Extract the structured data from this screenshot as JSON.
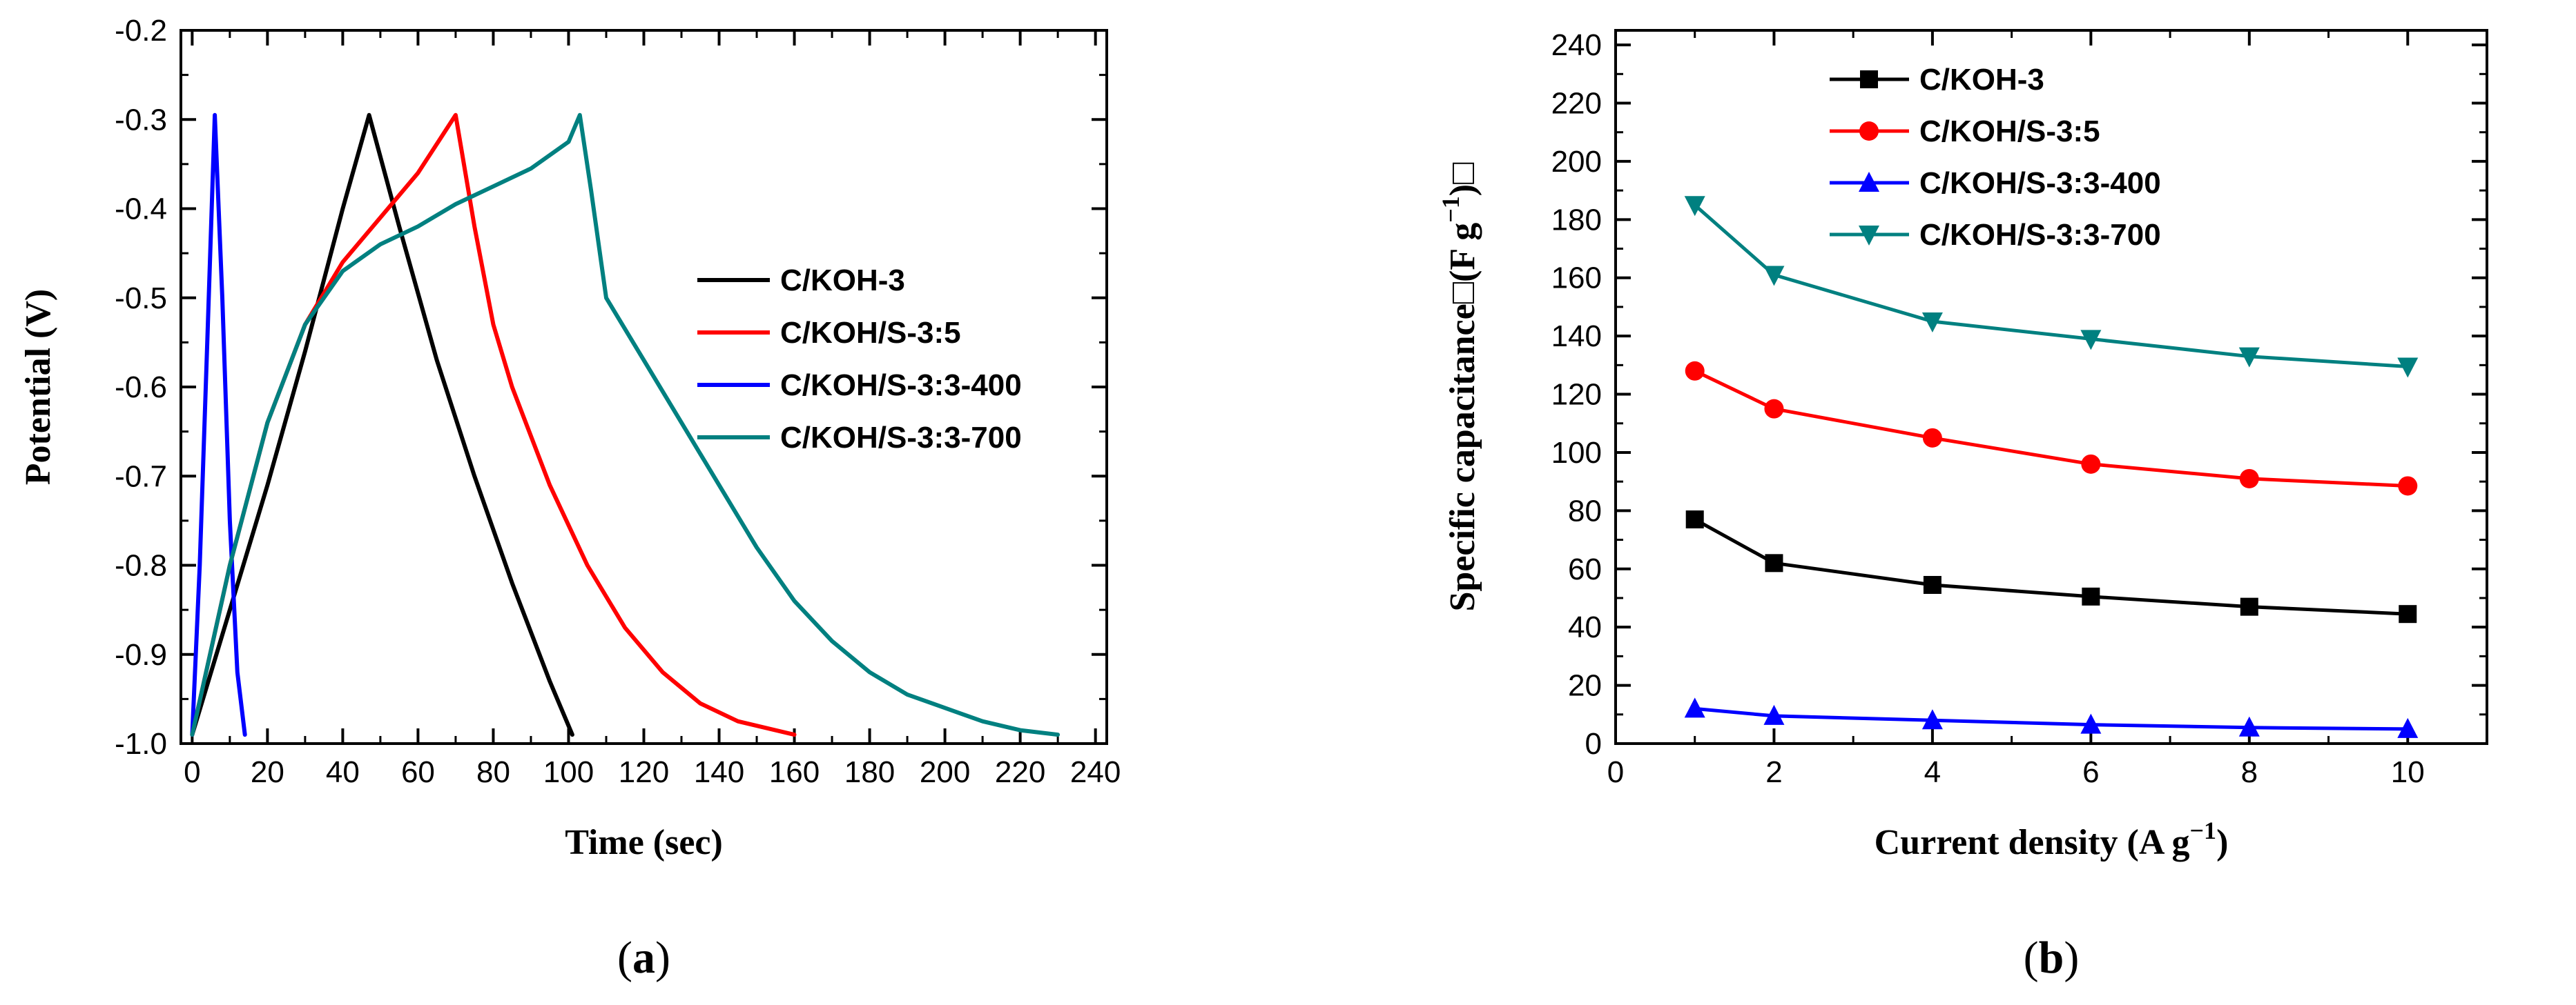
{
  "chart_data": [
    {
      "id": "a",
      "panel_label": {
        "open": "(",
        "letter": "a",
        "close": ")"
      },
      "type": "line",
      "title": "",
      "xlabel": "Time (sec)",
      "ylabel": "Potential (V)",
      "xlim": [
        -3,
        243
      ],
      "ylim": [
        -1.0,
        -0.2
      ],
      "xticks": [
        0,
        20,
        40,
        60,
        80,
        100,
        120,
        140,
        160,
        180,
        200,
        220,
        240
      ],
      "yticks": [
        -1.0,
        -0.9,
        -0.8,
        -0.7,
        -0.6,
        -0.5,
        -0.4,
        -0.3,
        -0.2
      ],
      "ytick_labels": [
        "-1.0",
        "-0.9",
        "-0.8",
        "-0.7",
        "-0.6",
        "-0.5",
        "-0.4",
        "-0.3",
        "-0.2"
      ],
      "legend_position": "center-right",
      "series": [
        {
          "name": "C/KOH-3",
          "color": "#000000",
          "x": [
            0,
            10,
            20,
            30,
            40,
            47,
            55,
            65,
            75,
            85,
            95,
            101
          ],
          "y": [
            -0.99,
            -0.85,
            -0.71,
            -0.56,
            -0.4,
            -0.295,
            -0.42,
            -0.57,
            -0.7,
            -0.82,
            -0.93,
            -0.99
          ]
        },
        {
          "name": "C/KOH/S-3:5",
          "color": "#ff0000",
          "x": [
            0,
            10,
            20,
            30,
            40,
            50,
            60,
            70,
            75,
            80,
            85,
            95,
            105,
            115,
            125,
            135,
            145,
            160
          ],
          "y": [
            -0.99,
            -0.8,
            -0.64,
            -0.53,
            -0.46,
            -0.41,
            -0.36,
            -0.295,
            -0.42,
            -0.53,
            -0.6,
            -0.71,
            -0.8,
            -0.87,
            -0.92,
            -0.955,
            -0.975,
            -0.99
          ]
        },
        {
          "name": "C/KOH/S-3:3-400",
          "color": "#0000ff",
          "x": [
            0,
            2,
            4,
            6,
            8,
            10,
            12,
            14
          ],
          "y": [
            -0.99,
            -0.8,
            -0.55,
            -0.295,
            -0.5,
            -0.75,
            -0.92,
            -0.99
          ]
        },
        {
          "name": "C/KOH/S-3:3-700",
          "color": "#008080",
          "x": [
            0,
            10,
            20,
            30,
            40,
            50,
            60,
            70,
            80,
            90,
            100,
            103,
            106,
            110,
            120,
            130,
            140,
            150,
            160,
            170,
            180,
            190,
            200,
            210,
            220,
            230
          ],
          "y": [
            -0.99,
            -0.8,
            -0.64,
            -0.53,
            -0.47,
            -0.44,
            -0.42,
            -0.395,
            -0.375,
            -0.355,
            -0.325,
            -0.295,
            -0.38,
            -0.5,
            -0.57,
            -0.64,
            -0.71,
            -0.78,
            -0.84,
            -0.885,
            -0.92,
            -0.945,
            -0.96,
            -0.975,
            -0.985,
            -0.99
          ]
        }
      ]
    },
    {
      "id": "b",
      "panel_label": {
        "open": "(",
        "letter": "b",
        "close": ")"
      },
      "type": "line",
      "title": "",
      "xlabel": {
        "main": "Current density (A g",
        "sup": "−1",
        "tail": ")"
      },
      "ylabel": {
        "main": "Specific capacitance□(F g",
        "sup": "−1",
        "tail": ")□"
      },
      "xlim": [
        0,
        11
      ],
      "ylim": [
        0,
        245
      ],
      "xticks": [
        0,
        2,
        4,
        6,
        8,
        10
      ],
      "yticks": [
        0,
        20,
        40,
        60,
        80,
        100,
        120,
        140,
        160,
        180,
        200,
        220,
        240
      ],
      "legend_position": "top-left",
      "x": [
        1,
        2,
        4,
        6,
        8,
        10
      ],
      "series": [
        {
          "name": "C/KOH-3",
          "color": "#000000",
          "marker": "square",
          "values": [
            77,
            62,
            54.5,
            50.5,
            47,
            44.5
          ]
        },
        {
          "name": "C/KOH/S-3:5",
          "color": "#ff0000",
          "marker": "circle",
          "values": [
            128,
            115,
            105,
            96,
            91,
            88.5
          ]
        },
        {
          "name": "C/KOH/S-3:3-400",
          "color": "#0000ff",
          "marker": "triangle-up",
          "values": [
            12,
            9.5,
            8,
            6.5,
            5.5,
            5
          ]
        },
        {
          "name": "C/KOH/S-3:3-700",
          "color": "#008080",
          "marker": "triangle-down",
          "values": [
            185,
            161,
            145,
            139,
            133,
            129.5
          ]
        }
      ]
    }
  ]
}
